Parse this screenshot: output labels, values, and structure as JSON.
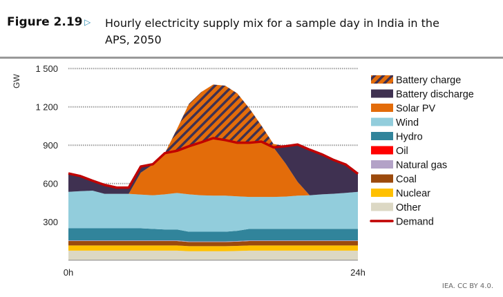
{
  "header": {
    "figure_label": "Figure 2.19",
    "arrow_icon": "triangle-right-icon",
    "title": "Hourly electricity supply mix for a sample day in India in the APS, 2050"
  },
  "credit": "IEA. CC BY 4.0.",
  "chart_data": {
    "type": "area",
    "stacked": true,
    "title": "Hourly electricity supply mix for a sample day in India in the APS, 2050",
    "ylabel": "GW",
    "xlabel": "",
    "x_tick_labels": [
      "0h",
      "24h"
    ],
    "y_tick_labels": [
      "300",
      "600",
      "900",
      "1 200",
      "1 500"
    ],
    "y_ticks": [
      300,
      600,
      900,
      1200,
      1500
    ],
    "ylim": [
      0,
      1500
    ],
    "xlim": [
      0,
      24
    ],
    "grid": "horizontal dotted",
    "legend_position": "right",
    "x": [
      0,
      1,
      2,
      3,
      4,
      5,
      6,
      7,
      8,
      9,
      10,
      11,
      12,
      13,
      14,
      15,
      16,
      17,
      18,
      19,
      20,
      21,
      22,
      23,
      24
    ],
    "series": [
      {
        "name": "Other",
        "color": "#dcd8c4",
        "values": [
          75,
          75,
          75,
          75,
          75,
          75,
          75,
          75,
          75,
          75,
          70,
          70,
          70,
          70,
          72,
          75,
          75,
          75,
          75,
          75,
          75,
          75,
          75,
          75,
          75
        ]
      },
      {
        "name": "Nuclear",
        "color": "#ffc000",
        "values": [
          40,
          40,
          40,
          40,
          40,
          40,
          40,
          40,
          40,
          40,
          40,
          40,
          40,
          40,
          40,
          40,
          40,
          40,
          40,
          40,
          40,
          40,
          40,
          40,
          40
        ]
      },
      {
        "name": "Coal",
        "color": "#9c4a0c",
        "values": [
          35,
          35,
          35,
          35,
          35,
          35,
          35,
          35,
          35,
          35,
          32,
          32,
          32,
          32,
          33,
          35,
          35,
          35,
          35,
          35,
          35,
          35,
          35,
          35,
          35
        ]
      },
      {
        "name": "Natural gas",
        "color": "#b3a2c7",
        "values": [
          5,
          5,
          5,
          5,
          5,
          5,
          5,
          5,
          5,
          5,
          5,
          5,
          5,
          5,
          5,
          5,
          5,
          5,
          5,
          5,
          5,
          5,
          5,
          5,
          5
        ]
      },
      {
        "name": "Oil",
        "color": "#ff0000",
        "values": [
          0,
          0,
          0,
          0,
          0,
          0,
          0,
          0,
          0,
          0,
          0,
          0,
          0,
          0,
          0,
          0,
          0,
          0,
          0,
          0,
          0,
          0,
          0,
          0,
          0
        ]
      },
      {
        "name": "Hydro",
        "color": "#31849b",
        "values": [
          95,
          95,
          95,
          95,
          95,
          95,
          95,
          90,
          85,
          85,
          76,
          76,
          76,
          76,
          80,
          90,
          90,
          90,
          90,
          90,
          90,
          90,
          90,
          90,
          90
        ]
      },
      {
        "name": "Wind",
        "color": "#92cddc",
        "values": [
          285,
          290,
          294,
          269,
          269,
          269,
          263,
          263,
          275,
          286,
          292,
          285,
          282,
          282,
          270,
          250,
          250,
          250,
          253,
          260,
          263,
          270,
          275,
          282,
          290
        ]
      },
      {
        "name": "Solar PV",
        "color": "#e36c0a",
        "values": [
          0,
          0,
          0,
          0,
          0,
          0,
          172,
          240,
          323,
          330,
          377,
          414,
          450,
          435,
          419,
          424,
          433,
          388,
          259,
          108,
          0,
          0,
          0,
          0,
          0
        ]
      },
      {
        "name": "Battery discharge",
        "color": "#3f3151",
        "values": [
          144,
          118,
          78,
          70,
          49,
          49,
          48,
          3,
          0,
          0,
          0,
          0,
          0,
          0,
          0,
          0,
          0,
          0,
          135,
          292,
          357,
          314,
          264,
          221,
          141
        ]
      },
      {
        "name": "Battery charge",
        "color": "#e36c0a",
        "hatch_color": "#3f3151",
        "values": [
          0,
          0,
          0,
          0,
          0,
          0,
          0,
          0,
          0,
          171,
          333,
          393,
          420,
          426,
          387,
          270,
          126,
          27,
          0,
          0,
          0,
          0,
          0,
          0,
          0
        ]
      }
    ],
    "demand": {
      "name": "Demand",
      "color": "#c00000",
      "values": [
        679,
        658,
        622,
        589,
        568,
        568,
        733,
        751,
        838,
        856,
        892,
        922,
        955,
        940,
        919,
        919,
        928,
        883,
        892,
        905,
        865,
        829,
        784,
        748,
        676
      ]
    },
    "legend_order": [
      "Battery charge",
      "Battery discharge",
      "Solar PV",
      "Wind",
      "Hydro",
      "Oil",
      "Natural gas",
      "Coal",
      "Nuclear",
      "Other",
      "Demand"
    ]
  }
}
